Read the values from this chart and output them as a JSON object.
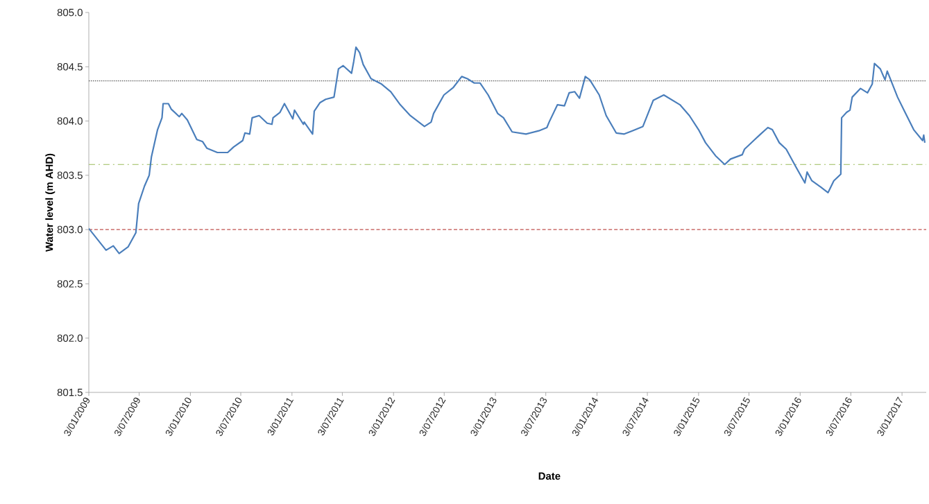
{
  "chart_data": {
    "type": "line",
    "xlabel": "Date",
    "ylabel": "Water level (m AHD)",
    "xlim": [
      "2009-01-03",
      "2017-03-31"
    ],
    "ylim": [
      801.5,
      805.0
    ],
    "xticks": [
      {
        "value": "2009-01-03",
        "label": "3/01/2009"
      },
      {
        "value": "2009-07-03",
        "label": "3/07/2009"
      },
      {
        "value": "2010-01-03",
        "label": "3/01/2010"
      },
      {
        "value": "2010-07-03",
        "label": "3/07/2010"
      },
      {
        "value": "2011-01-03",
        "label": "3/01/2011"
      },
      {
        "value": "2011-07-03",
        "label": "3/07/2011"
      },
      {
        "value": "2012-01-03",
        "label": "3/01/2012"
      },
      {
        "value": "2012-07-03",
        "label": "3/07/2012"
      },
      {
        "value": "2013-01-03",
        "label": "3/01/2013"
      },
      {
        "value": "2013-07-03",
        "label": "3/07/2013"
      },
      {
        "value": "2014-01-03",
        "label": "3/01/2014"
      },
      {
        "value": "2014-07-03",
        "label": "3/07/2014"
      },
      {
        "value": "2015-01-03",
        "label": "3/01/2015"
      },
      {
        "value": "2015-07-03",
        "label": "3/07/2015"
      },
      {
        "value": "2016-01-03",
        "label": "3/01/2016"
      },
      {
        "value": "2016-07-03",
        "label": "3/07/2016"
      },
      {
        "value": "2017-01-03",
        "label": "3/01/2017"
      }
    ],
    "yticks": [
      801.5,
      {
        "value": 802,
        "label": "802.0"
      },
      802.5,
      {
        "value": 803,
        "label": "803.0"
      },
      803.5,
      {
        "value": 804,
        "label": "804.0"
      },
      804.5,
      {
        "value": 805,
        "label": "805.0"
      }
    ],
    "grid": false,
    "legend": false,
    "marker": "none",
    "line_style": "solid",
    "x": [
      "2009-01-03",
      "2009-03-06",
      "2009-04-01",
      "2009-04-22",
      "2009-05-24",
      "2009-06-21",
      "2009-07-01",
      "2009-07-22",
      "2009-08-08",
      "2009-08-16",
      "2009-09-07",
      "2009-09-23",
      "2009-09-27",
      "2009-10-16",
      "2009-10-26",
      "2009-11-24",
      "2009-12-03",
      "2009-12-23",
      "2010-01-26",
      "2010-02-16",
      "2010-03-03",
      "2010-04-10",
      "2010-05-17",
      "2010-06-07",
      "2010-07-10",
      "2010-07-18",
      "2010-08-04",
      "2010-08-13",
      "2010-09-07",
      "2010-10-06",
      "2010-10-23",
      "2010-10-27",
      "2010-11-21",
      "2010-12-07",
      "2011-01-06",
      "2011-01-12",
      "2011-02-13",
      "2011-02-16",
      "2011-03-18",
      "2011-03-24",
      "2011-04-14",
      "2011-05-04",
      "2011-06-03",
      "2011-06-19",
      "2011-07-06",
      "2011-08-05",
      "2011-08-13",
      "2011-08-21",
      "2011-09-03",
      "2011-09-16",
      "2011-10-14",
      "2011-11-21",
      "2011-12-24",
      "2012-01-27",
      "2012-03-03",
      "2012-04-23",
      "2012-05-17",
      "2012-05-26",
      "2012-07-02",
      "2012-08-05",
      "2012-09-04",
      "2012-09-24",
      "2012-10-19",
      "2012-11-09",
      "2012-12-08",
      "2013-01-11",
      "2013-02-01",
      "2013-03-04",
      "2013-04-23",
      "2013-06-08",
      "2013-07-07",
      "2013-07-15",
      "2013-08-14",
      "2013-09-08",
      "2013-09-25",
      "2013-10-15",
      "2013-11-01",
      "2013-11-22",
      "2013-12-08",
      "2014-01-11",
      "2014-02-05",
      "2014-03-13",
      "2014-04-11",
      "2014-05-10",
      "2014-06-17",
      "2014-07-24",
      "2014-08-31",
      "2014-10-28",
      "2014-12-01",
      "2015-01-03",
      "2015-01-28",
      "2015-03-05",
      "2015-04-07",
      "2015-04-28",
      "2015-06-09",
      "2015-06-17",
      "2015-07-20",
      "2015-08-14",
      "2015-09-09",
      "2015-09-25",
      "2015-10-20",
      "2015-11-14",
      "2015-12-18",
      "2016-01-20",
      "2016-01-28",
      "2016-02-14",
      "2016-03-18",
      "2016-04-12",
      "2016-05-03",
      "2016-05-28",
      "2016-05-31",
      "2016-06-18",
      "2016-06-30",
      "2016-07-08",
      "2016-08-07",
      "2016-09-01",
      "2016-09-18",
      "2016-09-26",
      "2016-10-17",
      "2016-11-03",
      "2016-11-11",
      "2016-12-18",
      "2017-01-12",
      "2017-02-14",
      "2017-03-18",
      "2017-03-22",
      "2017-03-26"
    ],
    "series": [
      {
        "color": "#4a7ebb",
        "values": [
          803.01,
          802.81,
          802.85,
          802.78,
          802.84,
          802.97,
          803.24,
          803.4,
          803.5,
          803.67,
          803.92,
          804.03,
          804.16,
          804.16,
          804.11,
          804.04,
          804.07,
          804.01,
          803.83,
          803.81,
          803.75,
          803.71,
          803.71,
          803.76,
          803.82,
          803.89,
          803.88,
          804.03,
          804.05,
          803.98,
          803.97,
          804.03,
          804.08,
          804.16,
          804.02,
          804.1,
          803.97,
          803.99,
          803.88,
          804.09,
          804.17,
          804.2,
          804.22,
          804.48,
          804.51,
          804.44,
          804.55,
          804.68,
          804.63,
          804.52,
          804.39,
          804.34,
          804.27,
          804.15,
          804.05,
          803.95,
          803.99,
          804.07,
          804.24,
          804.31,
          804.41,
          804.39,
          804.35,
          804.35,
          804.24,
          804.07,
          804.03,
          803.9,
          803.88,
          803.91,
          803.94,
          803.99,
          804.15,
          804.14,
          804.26,
          804.27,
          804.21,
          804.41,
          804.38,
          804.24,
          804.05,
          803.89,
          803.88,
          803.91,
          803.95,
          804.19,
          804.24,
          804.15,
          804.05,
          803.92,
          803.8,
          803.68,
          803.6,
          803.65,
          803.69,
          803.74,
          803.82,
          803.88,
          803.94,
          803.92,
          803.8,
          803.74,
          803.58,
          803.43,
          803.53,
          803.45,
          803.39,
          803.34,
          803.45,
          803.51,
          804.03,
          804.08,
          804.1,
          804.22,
          804.3,
          804.26,
          804.34,
          804.53,
          804.48,
          804.38,
          804.46,
          804.22,
          804.09,
          803.92,
          803.82,
          803.87,
          803.8
        ]
      }
    ],
    "ref_lines": [
      {
        "axis": "y",
        "value": 804.37,
        "color": "#595959",
        "line_style": "dotted"
      },
      {
        "axis": "y",
        "value": 803.6,
        "color": "#9bbb59",
        "line_style": "dashdot"
      },
      {
        "axis": "y",
        "value": 803.0,
        "color": "#c0504d",
        "line_style": "dashed"
      }
    ]
  }
}
